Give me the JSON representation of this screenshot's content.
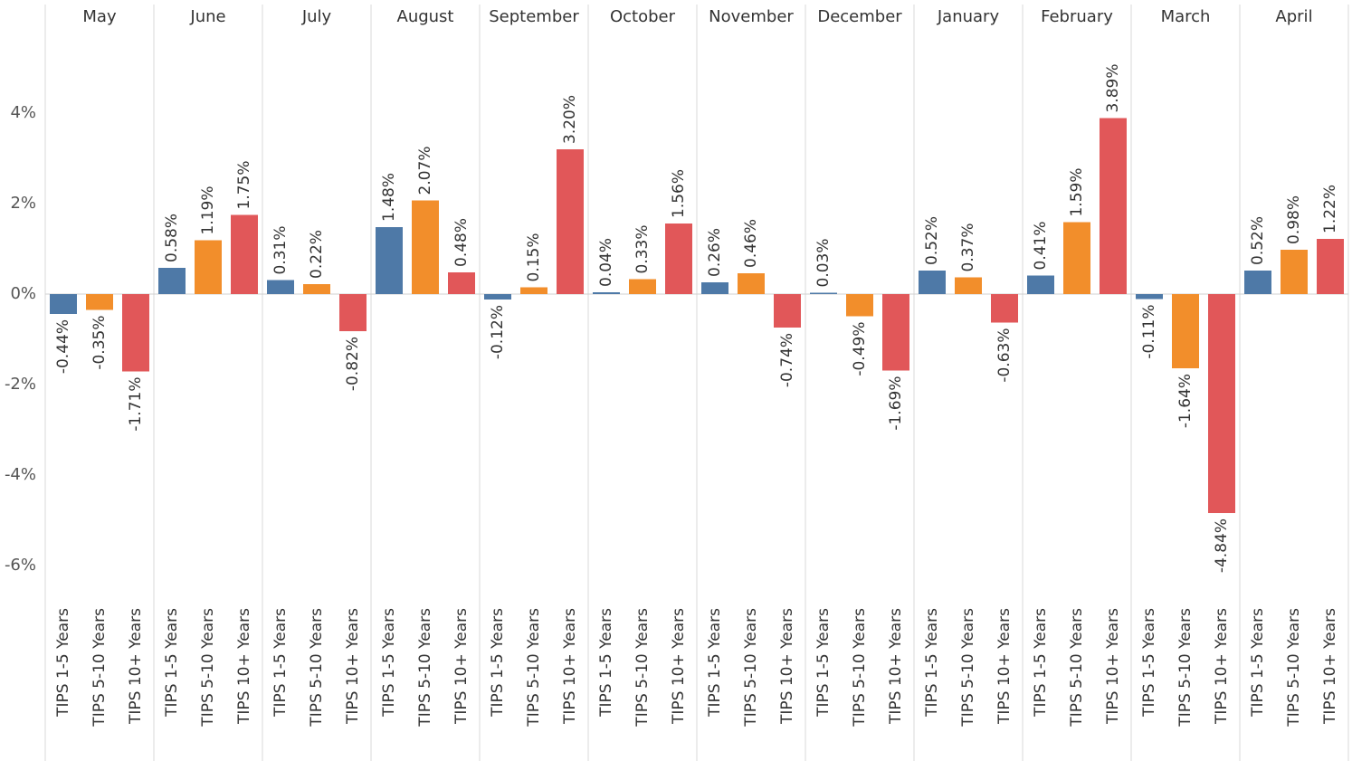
{
  "chart_data": {
    "type": "bar",
    "categories": [
      "May",
      "June",
      "July",
      "August",
      "September",
      "October",
      "November",
      "December",
      "January",
      "February",
      "March",
      "April"
    ],
    "series": [
      {
        "name": "TIPS 1-5 Years",
        "color": "#4e79a7",
        "values": [
          -0.44,
          0.58,
          0.31,
          1.48,
          -0.12,
          0.04,
          0.26,
          0.03,
          0.52,
          0.41,
          -0.11,
          0.52
        ],
        "value_labels": [
          "-0.44%",
          "0.58%",
          "0.31%",
          "1.48%",
          "-0.12%",
          "0.04%",
          "0.26%",
          "0.03%",
          "0.52%",
          "0.41%",
          "-0.11%",
          "0.52%"
        ]
      },
      {
        "name": "TIPS 5-10 Years",
        "color": "#f28e2b",
        "values": [
          -0.35,
          1.19,
          0.22,
          2.07,
          0.15,
          0.33,
          0.46,
          -0.49,
          0.37,
          1.59,
          -1.64,
          0.98
        ],
        "value_labels": [
          "-0.35%",
          "1.19%",
          "0.22%",
          "2.07%",
          "0.15%",
          "0.33%",
          "0.46%",
          "-0.49%",
          "0.37%",
          "1.59%",
          "-1.64%",
          "0.98%"
        ]
      },
      {
        "name": "TIPS 10+ Years",
        "color": "#e15759",
        "values": [
          -1.71,
          1.75,
          -0.82,
          0.48,
          3.2,
          1.56,
          -0.74,
          -1.69,
          -0.63,
          3.89,
          -4.84,
          1.22
        ],
        "value_labels": [
          "-1.71%",
          "1.75%",
          "-0.82%",
          "0.48%",
          "3.20%",
          "1.56%",
          "-0.74%",
          "-1.69%",
          "-0.63%",
          "3.89%",
          "-4.84%",
          "1.22%"
        ]
      }
    ],
    "ylim": [
      -6.7,
      5.7
    ],
    "yticks": [
      {
        "value": -6,
        "label": "-6%"
      },
      {
        "value": -4,
        "label": "-4%"
      },
      {
        "value": -2,
        "label": "-2%"
      },
      {
        "value": 0,
        "label": "0%"
      },
      {
        "value": 2,
        "label": "2%"
      },
      {
        "value": 4,
        "label": "4%"
      }
    ]
  }
}
